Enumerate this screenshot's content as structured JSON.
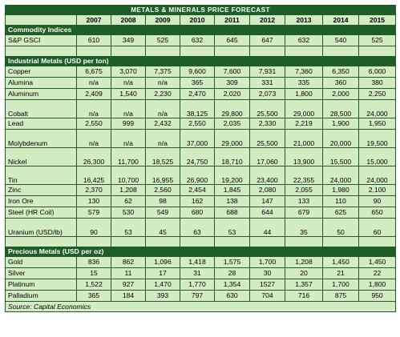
{
  "title": "METALS & MINERALS PRICE FORECAST",
  "years": [
    "2007",
    "2008",
    "2009",
    "2010",
    "2011",
    "2012",
    "2013",
    "2014",
    "2015"
  ],
  "sections": [
    {
      "heading": "Commodity Indices",
      "rows": [
        {
          "label": "S&P GSCI",
          "values": [
            "610",
            "349",
            "525",
            "632",
            "645",
            "647",
            "632",
            "540",
            "525"
          ]
        }
      ]
    },
    {
      "heading": "Industrial Metals (USD per ton)",
      "rows": [
        {
          "label": "Copper",
          "values": [
            "6,675",
            "3,070",
            "7,375",
            "9,600",
            "7,600",
            "7,931",
            "7,360",
            "6,350",
            "6,000"
          ]
        },
        {
          "label": "Alumina",
          "values": [
            "n/a",
            "n/a",
            "n/a",
            "365",
            "309",
            "331",
            "335",
            "360",
            "380"
          ]
        },
        {
          "label": "Aluminum",
          "values": [
            "2,409",
            "1,540",
            "2,230",
            "2,470",
            "2,020",
            "2,073",
            "1,800",
            "2,000",
            "2,250"
          ]
        },
        {
          "label": "Cobalt",
          "values": [
            "n/a",
            "n/a",
            "n/a",
            "38,125",
            "29,800",
            "25,500",
            "29,000",
            "28,500",
            "24,000"
          ]
        },
        {
          "label": "Lead",
          "values": [
            "2,550",
            "999",
            "2,432",
            "2,550",
            "2,035",
            "2,330",
            "2,219",
            "1,900",
            "1,950"
          ]
        },
        {
          "label": "Molybdenum",
          "values": [
            "n/a",
            "n/a",
            "n/a",
            "37,000",
            "29,000",
            "25,500",
            "21,000",
            "20,000",
            "19,500"
          ]
        },
        {
          "label": "Nickel",
          "values": [
            "26,300",
            "11,700",
            "18,525",
            "24,750",
            "18,710",
            "17,060",
            "13,900",
            "15,500",
            "15,000"
          ]
        },
        {
          "label": "Tin",
          "values": [
            "16,425",
            "10,700",
            "16,955",
            "26,900",
            "19,200",
            "23,400",
            "22,355",
            "24,000",
            "24,000"
          ]
        },
        {
          "label": "Zinc",
          "values": [
            "2,370",
            "1,208",
            "2,560",
            "2,454",
            "1,845",
            "2,080",
            "2,055",
            "1,980",
            "2,100"
          ]
        },
        {
          "label": "Iron Ore",
          "values": [
            "130",
            "62",
            "98",
            "162",
            "138",
            "147",
            "133",
            "110",
            "90"
          ]
        },
        {
          "label": "Steel (HR Coil)",
          "values": [
            "579",
            "530",
            "549",
            "680",
            "688",
            "644",
            "679",
            "625",
            "650"
          ]
        },
        {
          "label": "Uranium (USD/lb)",
          "values": [
            "90",
            "53",
            "45",
            "63",
            "53",
            "44",
            "35",
            "50",
            "60"
          ]
        }
      ]
    },
    {
      "heading": "Precious Metals (USD per oz)",
      "rows": [
        {
          "label": "Gold",
          "values": [
            "836",
            "862",
            "1,096",
            "1,418",
            "1,575",
            "1,700",
            "1,208",
            "1,450",
            "1,450"
          ]
        },
        {
          "label": "Silver",
          "values": [
            "15",
            "11",
            "17",
            "31",
            "28",
            "30",
            "20",
            "21",
            "22"
          ]
        },
        {
          "label": "Platinum",
          "values": [
            "1,522",
            "927",
            "1,470",
            "1,770",
            "1,354",
            "1527",
            "1,357",
            "1,700",
            "1,800"
          ]
        },
        {
          "label": "Palladium",
          "values": [
            "365",
            "184",
            "393",
            "797",
            "630",
            "704",
            "716",
            "875",
            "950"
          ]
        }
      ]
    }
  ],
  "source": "Source: Capital Economics"
}
